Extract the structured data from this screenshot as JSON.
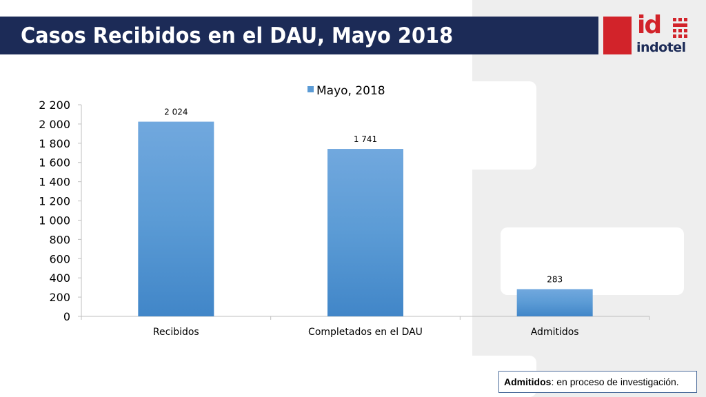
{
  "title": "Casos Recibidos en el DAU, Mayo 2018",
  "logo": {
    "mark": "id",
    "name": "indotel"
  },
  "note": {
    "bold": "Admitidos",
    "rest": ": en proceso de investigación."
  },
  "colors": {
    "title_bar": "#1c2b57",
    "accent_red": "#d2232a",
    "bar": "#5b9bd5"
  },
  "chart_data": {
    "type": "bar",
    "categories": [
      "Recibidos",
      "Completados en el DAU",
      "Admitidos"
    ],
    "series": [
      {
        "name": "Mayo, 2018",
        "values": [
          2024,
          1741,
          283
        ]
      }
    ],
    "data_labels": [
      "2 024",
      "1 741",
      "283"
    ],
    "yticks": [
      "0",
      "200",
      "400",
      "600",
      "800",
      "1 000",
      "1 200",
      "1 400",
      "1 600",
      "1 800",
      "2 000",
      "2 200"
    ],
    "ylim": [
      0,
      2200
    ],
    "legend": "top",
    "grid": false
  }
}
